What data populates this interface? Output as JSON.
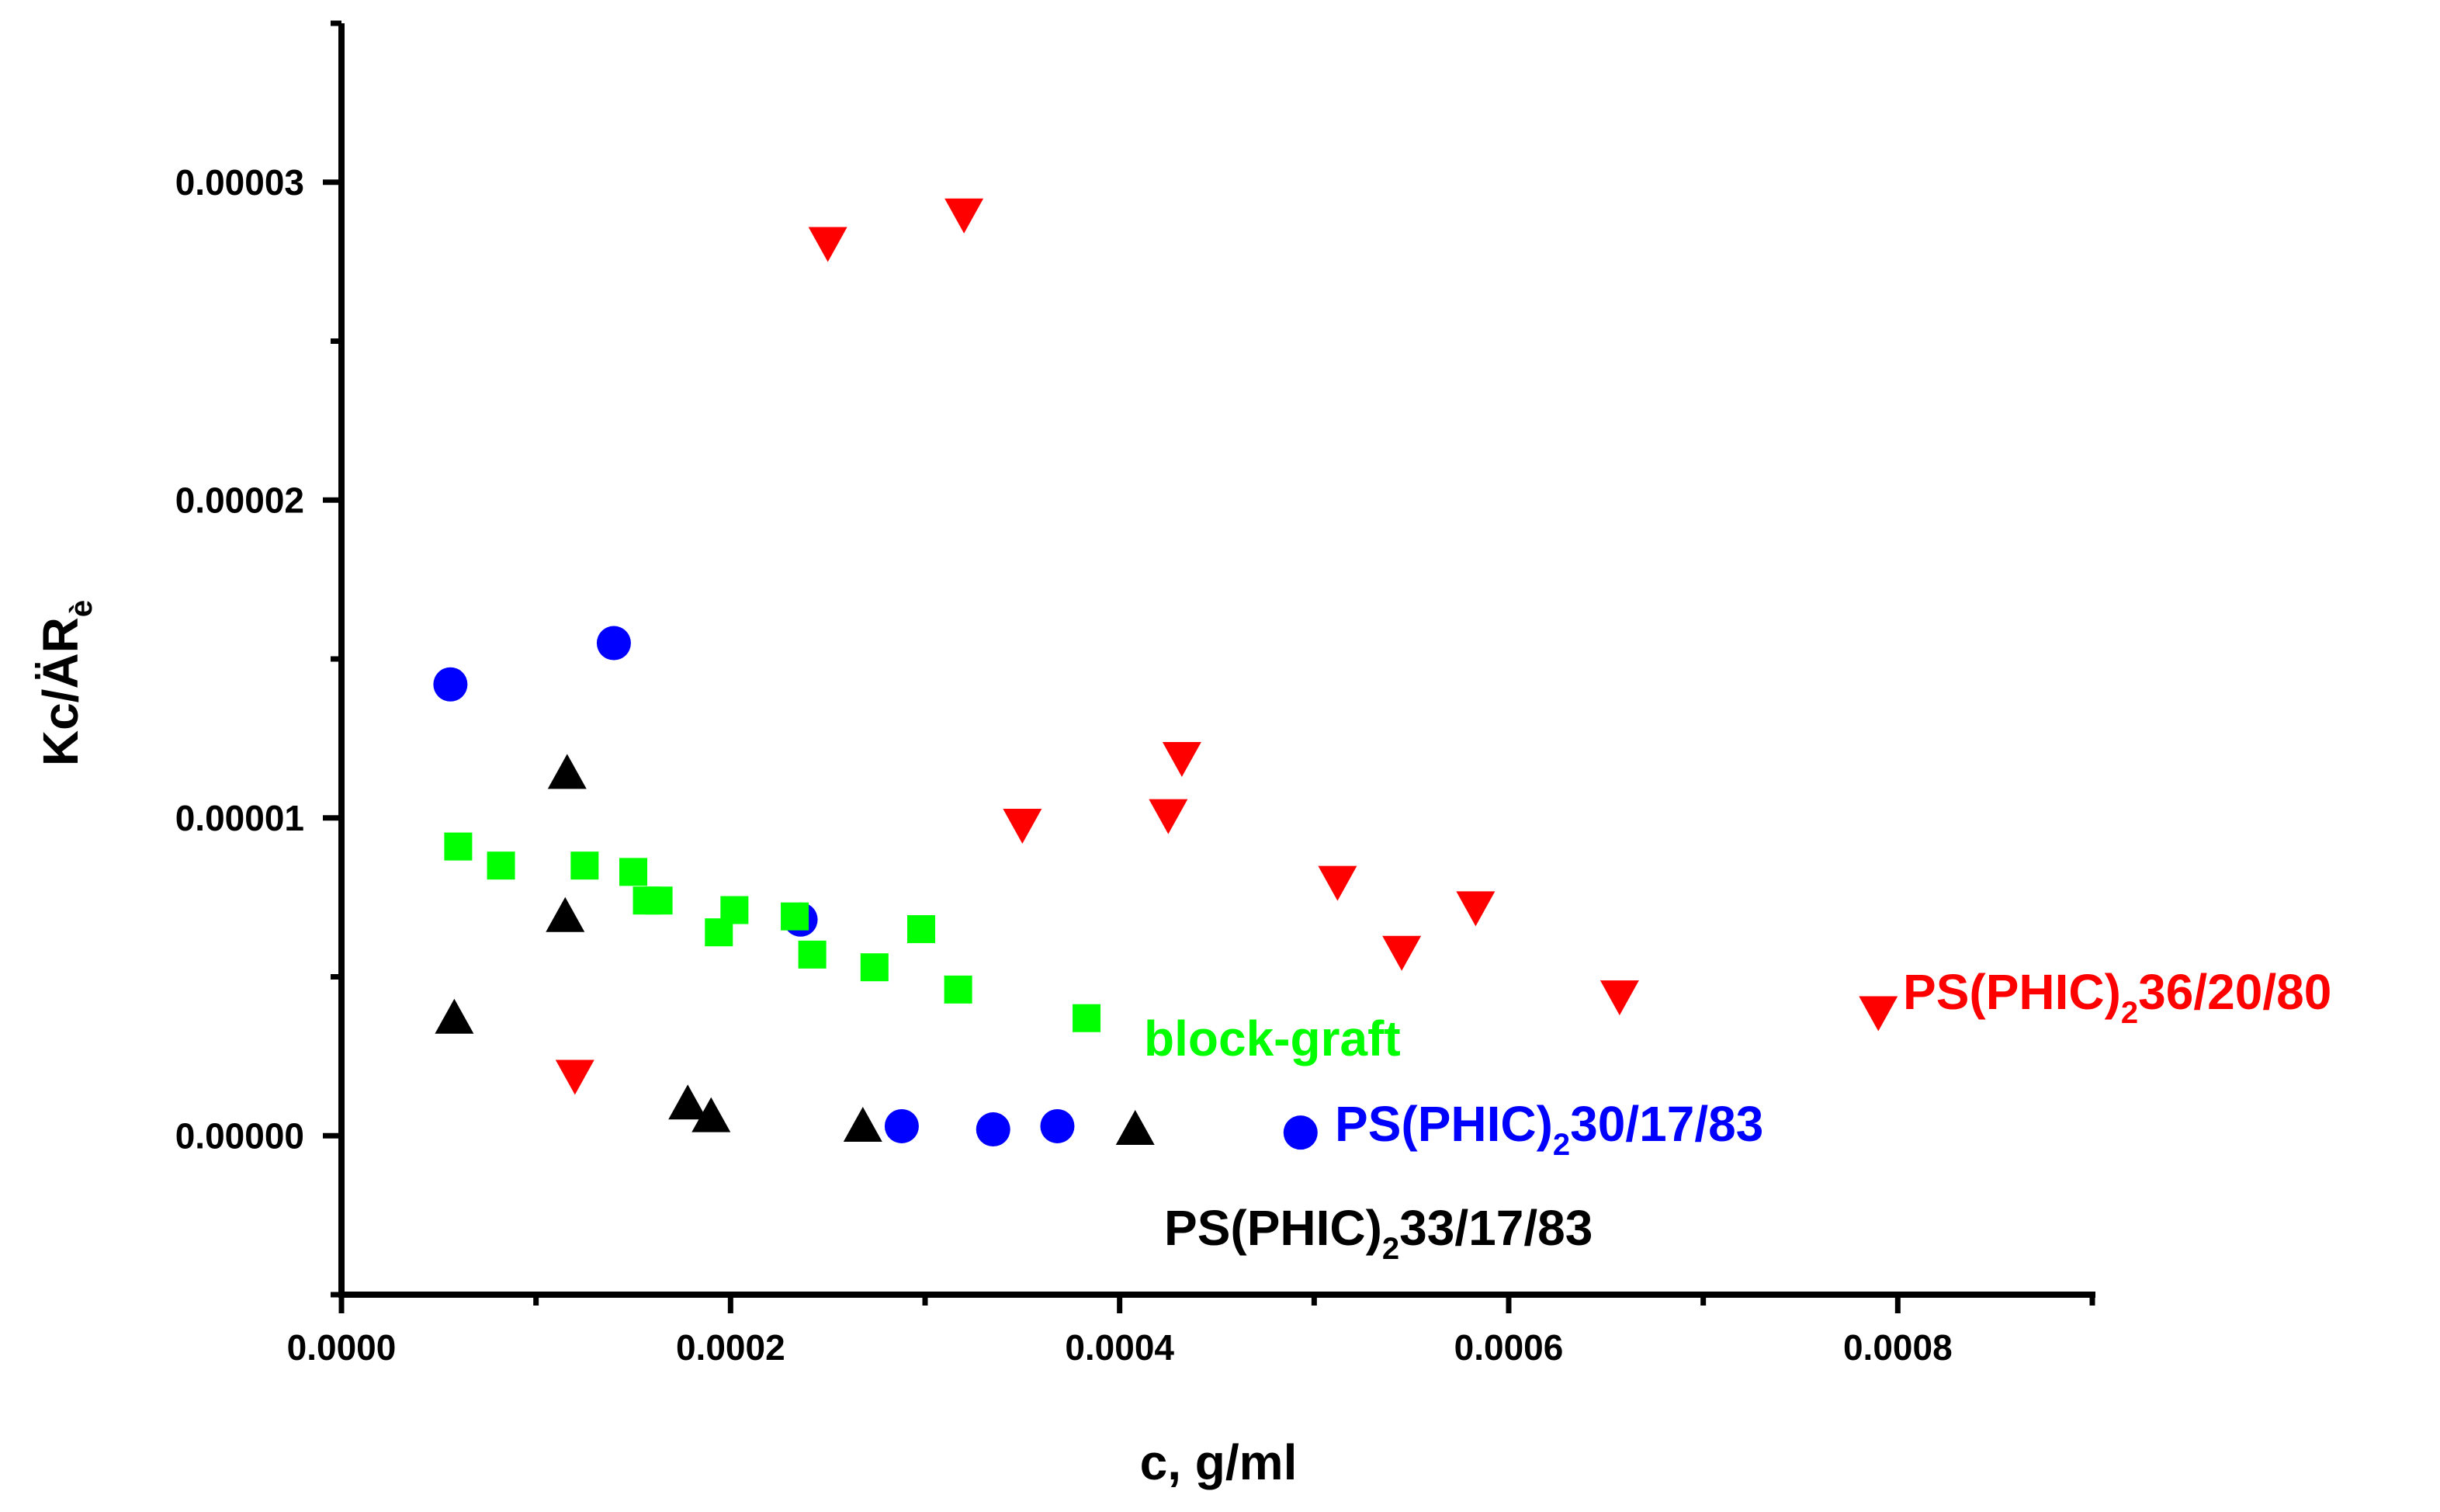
{
  "chart_data": {
    "type": "scatter",
    "title": "",
    "xlabel": "c, g/ml",
    "ylabel_main": "Kc/ÄR",
    "ylabel_sub": "è",
    "xlim": [
      0,
      0.0009
    ],
    "ylim": [
      -5e-06,
      3.5e-05
    ],
    "x_ticks": [
      0,
      0.0002,
      0.0004,
      0.0006,
      0.0008
    ],
    "x_tick_labels": [
      "0.0000",
      "0.0002",
      "0.0004",
      "0.0006",
      "0.0008"
    ],
    "y_ticks": [
      0,
      1e-05,
      2e-05,
      3e-05
    ],
    "y_tick_labels": [
      "0.00000",
      "0.00001",
      "0.00002",
      "0.00003"
    ],
    "grid": false,
    "series": [
      {
        "name": "PS(PHIC)236/20/80",
        "label_parts": [
          "PS(PHIC)",
          "2",
          "36/20/80"
        ],
        "color": "#ff0000",
        "marker": "triangle-down",
        "x": [
          0.00012,
          0.00025,
          0.00032,
          0.00035,
          0.000425,
          0.000432,
          0.000512,
          0.000545,
          0.000583,
          0.000657,
          0.00079
        ],
        "y": [
          1.9e-06,
          2.81e-05,
          2.9e-05,
          9.8e-06,
          1.01e-05,
          1.19e-05,
          8e-06,
          5.8e-06,
          7.2e-06,
          4.4e-06,
          3.9e-06
        ]
      },
      {
        "name": "PS(PHIC)230/17/83",
        "label_parts": [
          "PS(PHIC)",
          "2",
          "30/17/83"
        ],
        "color": "#0000ff",
        "marker": "circle",
        "x": [
          5.6e-05,
          0.00014,
          0.000236,
          0.000288,
          0.000335,
          0.000368,
          0.000493
        ],
        "y": [
          1.42e-05,
          1.55e-05,
          6.8e-06,
          3e-07,
          2e-07,
          3e-07,
          1e-07
        ]
      },
      {
        "name": "PS(PHIC)233/17/83",
        "label_parts": [
          "PS(PHIC)",
          "2",
          "33/17/83"
        ],
        "color": "#000000",
        "marker": "triangle-up",
        "x": [
          5.8e-05,
          0.000115,
          0.000116,
          0.000178,
          0.00019,
          0.000268,
          0.000408
        ],
        "y": [
          3.7e-06,
          6.9e-06,
          1.14e-05,
          1e-06,
          6e-07,
          3e-07,
          2e-07
        ]
      },
      {
        "name": "block-graft",
        "label_parts": [
          "block-graft",
          "",
          ""
        ],
        "color": "#00ff00",
        "marker": "square",
        "x": [
          6e-05,
          8.2e-05,
          0.000125,
          0.00015,
          0.000157,
          0.000163,
          0.000194,
          0.000202,
          0.000233,
          0.000242,
          0.000274,
          0.000298,
          0.000317,
          0.000383
        ],
        "y": [
          9.1e-06,
          8.5e-06,
          8.5e-06,
          8.3e-06,
          7.4e-06,
          7.4e-06,
          6.4e-06,
          7.1e-06,
          6.9e-06,
          5.7e-06,
          5.3e-06,
          6.5e-06,
          4.6e-06,
          3.7e-06
        ]
      }
    ]
  }
}
